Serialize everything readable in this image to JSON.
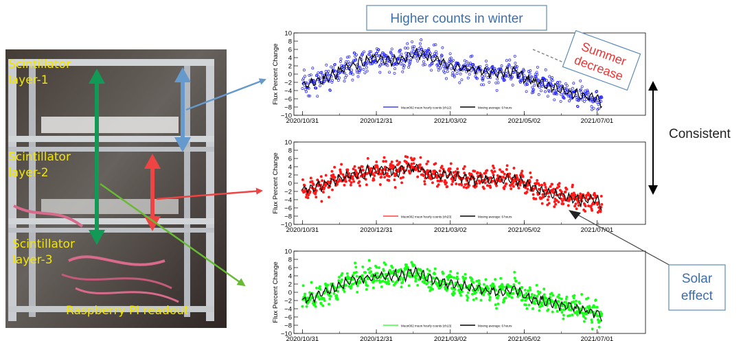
{
  "headline": "Higher counts in winter",
  "callouts": {
    "summer": [
      "Summer",
      "decrease"
    ],
    "consistent": "Consistent",
    "solar": [
      "Solar",
      "effect"
    ]
  },
  "photo": {
    "labels": {
      "layer1": [
        "Scintillator",
        "layer-1"
      ],
      "layer2": [
        "Scintillator",
        "layer-2"
      ],
      "layer3": [
        "Scintillator",
        "layer-3"
      ],
      "readout": "Raspberry PI readout"
    }
  },
  "colors": {
    "blue": "#1a1aff",
    "red": "#ff1a1a",
    "green": "#1aff1a",
    "average": "#000000",
    "arrow_blue": "#6699cc",
    "arrow_red": "#ee4444",
    "arrow_green": "#66bb33",
    "arrow_teal": "#119955",
    "callout_border": "#5b8bb8",
    "callout_text": "#3a6fb0",
    "summer_text": "#ee3333"
  },
  "chart_data": [
    {
      "type": "scatter",
      "ylabel": "Flux Percent Change",
      "ylim": [
        -10,
        10
      ],
      "yticks": [
        "10",
        "8",
        "6",
        "4",
        "2",
        "0",
        "−2",
        "−4",
        "−6",
        "−8",
        "−10"
      ],
      "xticks": [
        "2020/10/31",
        "2020/12/31",
        "2021/03/02",
        "2021/05/02",
        "2021/07/01"
      ],
      "legend": [
        "Muon002 muon hourly counts (ch12)",
        "Moving average: 6 hours"
      ],
      "series_color": "blue",
      "trend": {
        "dates": [
          "2020-10-31",
          "2020-11-20",
          "2020-12-10",
          "2020-12-31",
          "2021-01-15",
          "2021-01-31",
          "2021-02-15",
          "2021-03-02",
          "2021-03-20",
          "2021-04-10",
          "2021-04-25",
          "2021-05-02",
          "2021-05-15",
          "2021-06-01",
          "2021-06-15",
          "2021-07-01",
          "2021-07-05"
        ],
        "values": [
          -3,
          -1,
          2,
          4,
          3,
          5,
          4,
          2,
          1,
          0,
          1,
          -1,
          -2,
          -4,
          -5,
          -6,
          -7
        ]
      }
    },
    {
      "type": "scatter",
      "ylabel": "Flux Percent Change",
      "ylim": [
        -10,
        10
      ],
      "yticks": [
        "10",
        "8",
        "6",
        "4",
        "2",
        "0",
        "−2",
        "−4",
        "−6",
        "−8",
        "−10"
      ],
      "xticks": [
        "2020/10/31",
        "2020/12/31",
        "2021/03/02",
        "2021/05/02",
        "2021/07/01"
      ],
      "legend": [
        "Muon002 muon hourly counts (ch23)",
        "Moving average: 6 hours"
      ],
      "series_color": "red",
      "trend": {
        "dates": [
          "2020-10-31",
          "2020-11-20",
          "2020-12-10",
          "2020-12-31",
          "2021-01-15",
          "2021-01-31",
          "2021-02-15",
          "2021-03-02",
          "2021-03-20",
          "2021-04-10",
          "2021-04-25",
          "2021-05-02",
          "2021-05-15",
          "2021-06-01",
          "2021-06-15",
          "2021-07-01",
          "2021-07-05"
        ],
        "values": [
          -2,
          0,
          2,
          3,
          3,
          4,
          2,
          2,
          1,
          1,
          1,
          0,
          -2,
          -3,
          -4,
          -4,
          -6
        ]
      }
    },
    {
      "type": "scatter",
      "ylabel": "Flux Percent Change",
      "ylim": [
        -10,
        10
      ],
      "yticks": [
        "10",
        "8",
        "6",
        "4",
        "2",
        "0",
        "−2",
        "−4",
        "−6",
        "−8",
        "−10"
      ],
      "xticks": [
        "2020/10/31",
        "2020/12/31",
        "2021/03/02",
        "2021/05/02",
        "2021/07/01"
      ],
      "legend": [
        "Muon002 muon hourly counts (ch13)",
        "Moving average: 6 hours"
      ],
      "series_color": "green",
      "trend": {
        "dates": [
          "2020-10-31",
          "2020-11-20",
          "2020-12-10",
          "2020-12-31",
          "2021-01-15",
          "2021-01-31",
          "2021-02-15",
          "2021-03-02",
          "2021-03-20",
          "2021-04-10",
          "2021-04-25",
          "2021-05-02",
          "2021-05-15",
          "2021-06-01",
          "2021-06-15",
          "2021-07-01",
          "2021-07-05"
        ],
        "values": [
          -2,
          0,
          3,
          4,
          4,
          5,
          3,
          2,
          1,
          0,
          1,
          -1,
          -2,
          -3,
          -4,
          -5,
          -6
        ]
      }
    }
  ]
}
